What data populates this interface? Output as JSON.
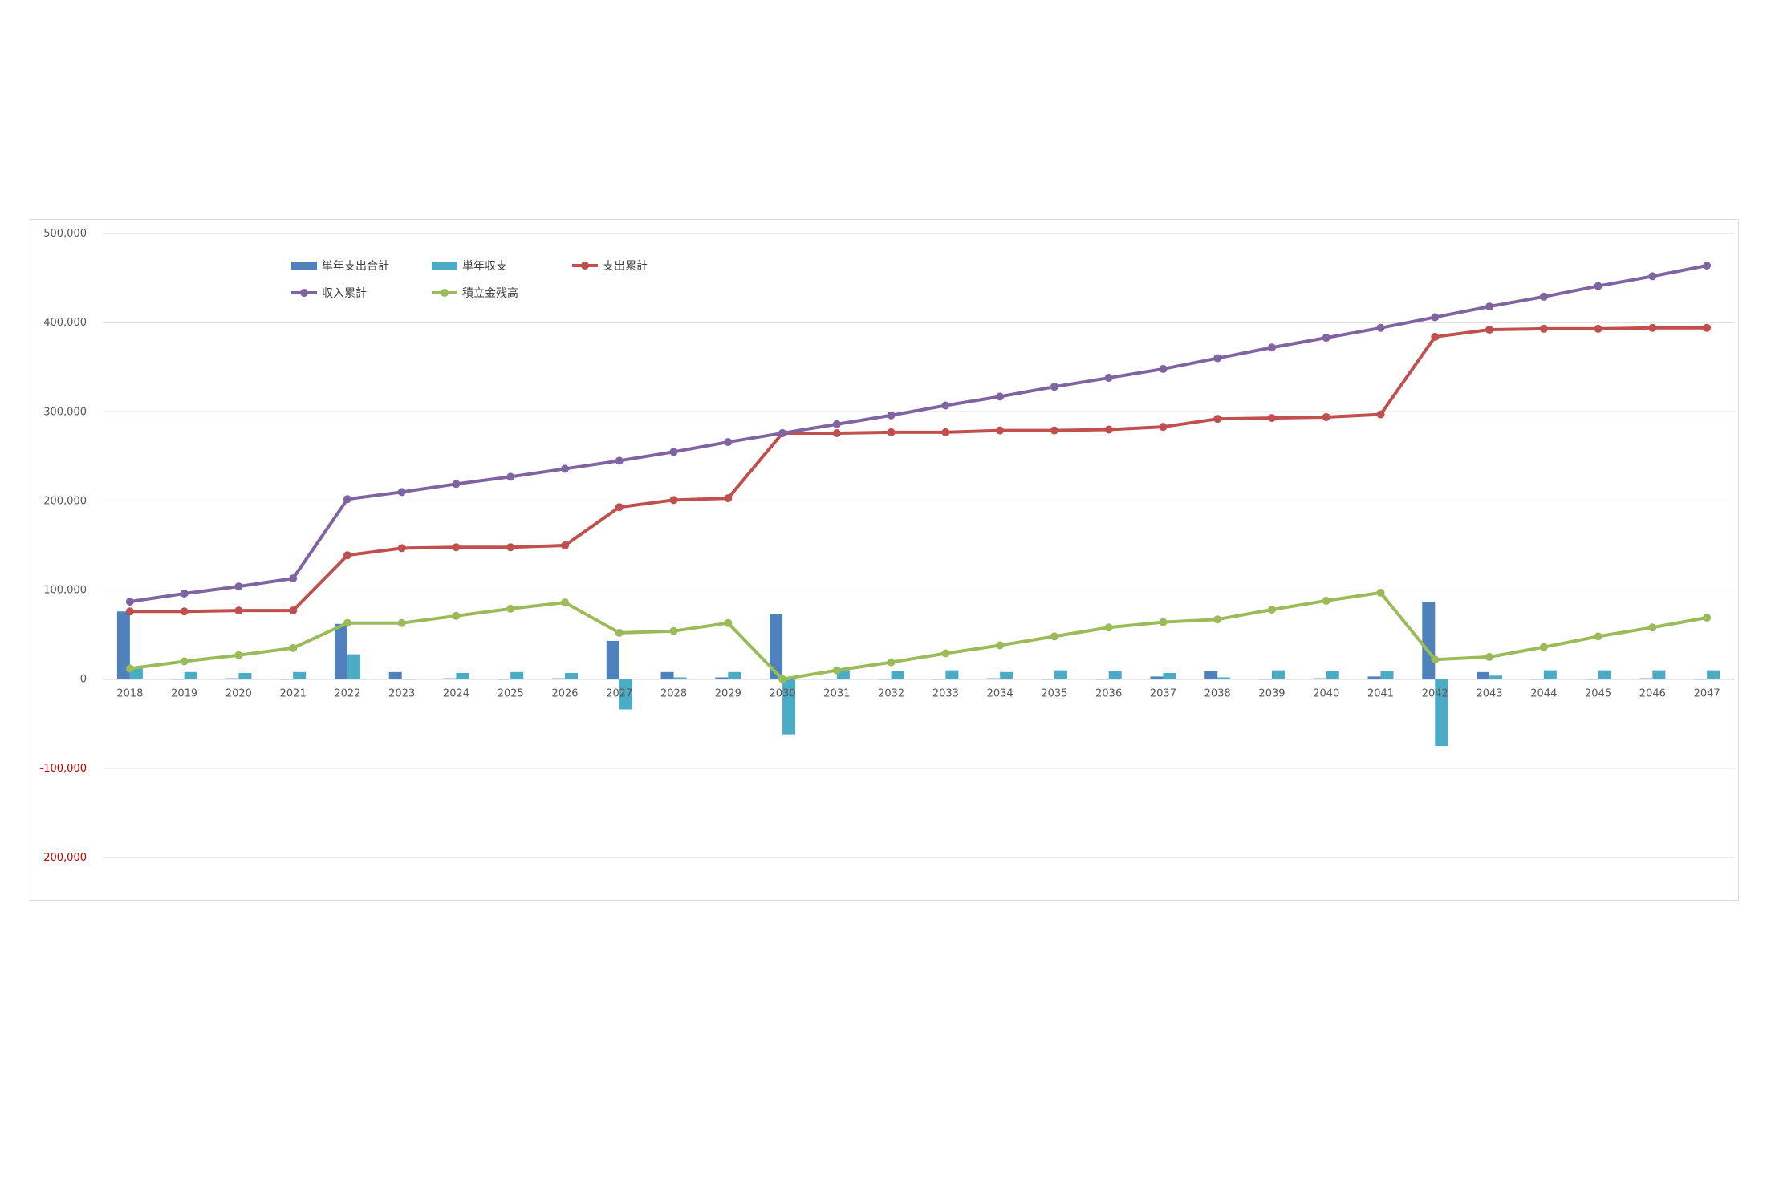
{
  "chart_data": {
    "type": "bar",
    "title": "",
    "xlabel": "",
    "ylabel": "",
    "ylim": [
      -200000,
      500000
    ],
    "ytick_step": 100000,
    "ytick_labels": [
      "-200,000",
      "-100,000",
      "0",
      "100,000",
      "200,000",
      "300,000",
      "400,000",
      "500,000"
    ],
    "grid": true,
    "legend_placement": "top-left",
    "categories": [
      "2018",
      "2019",
      "2020",
      "2021",
      "2022",
      "2023",
      "2024",
      "2025",
      "2026",
      "2027",
      "2028",
      "2029",
      "2030",
      "2031",
      "2032",
      "2033",
      "2034",
      "2035",
      "2036",
      "2037",
      "2038",
      "2039",
      "2040",
      "2041",
      "2042",
      "2043",
      "2044",
      "2045",
      "2046",
      "2047"
    ],
    "bar_series": [
      {
        "name": "単年支出合計",
        "color": "#4f81bd",
        "values": [
          76000,
          0,
          1000,
          0,
          62000,
          8000,
          1000,
          0,
          1000,
          43000,
          8000,
          2000,
          73000,
          0,
          0,
          0,
          1000,
          0,
          0,
          3000,
          9000,
          0,
          1000,
          3000,
          87000,
          8000,
          0,
          0,
          1000,
          0
        ]
      },
      {
        "name": "単年収支",
        "color": "#4bacc6",
        "values": [
          12000,
          8000,
          7000,
          8000,
          28000,
          0,
          7000,
          8000,
          7000,
          -34000,
          2000,
          8000,
          -62000,
          10000,
          9000,
          10000,
          8000,
          10000,
          9000,
          7000,
          2000,
          10000,
          9000,
          9000,
          -75000,
          4000,
          10000,
          10000,
          10000,
          10000
        ]
      }
    ],
    "line_series": [
      {
        "name": "支出累計",
        "color": "#c0504d",
        "values": [
          76000,
          76000,
          77000,
          77000,
          139000,
          147000,
          148000,
          148000,
          150000,
          193000,
          201000,
          203000,
          276000,
          276000,
          277000,
          277000,
          279000,
          279000,
          280000,
          283000,
          292000,
          293000,
          294000,
          297000,
          384000,
          392000,
          393000,
          393000,
          394000,
          394000
        ]
      },
      {
        "name": "収入累計",
        "color": "#8064a2",
        "values": [
          87000,
          96000,
          104000,
          113000,
          202000,
          210000,
          219000,
          227000,
          236000,
          245000,
          255000,
          266000,
          276000,
          286000,
          296000,
          307000,
          317000,
          328000,
          338000,
          348000,
          360000,
          372000,
          383000,
          394000,
          406000,
          418000,
          429000,
          441000,
          452000,
          464000
        ]
      },
      {
        "name": "積立金残高",
        "color": "#9bbb59",
        "values": [
          12000,
          20000,
          27000,
          35000,
          63000,
          63000,
          71000,
          79000,
          86000,
          52000,
          54000,
          63000,
          0,
          10000,
          19000,
          29000,
          38000,
          48000,
          58000,
          64000,
          67000,
          78000,
          88000,
          97000,
          22000,
          25000,
          36000,
          48000,
          58000,
          69000
        ]
      }
    ]
  }
}
